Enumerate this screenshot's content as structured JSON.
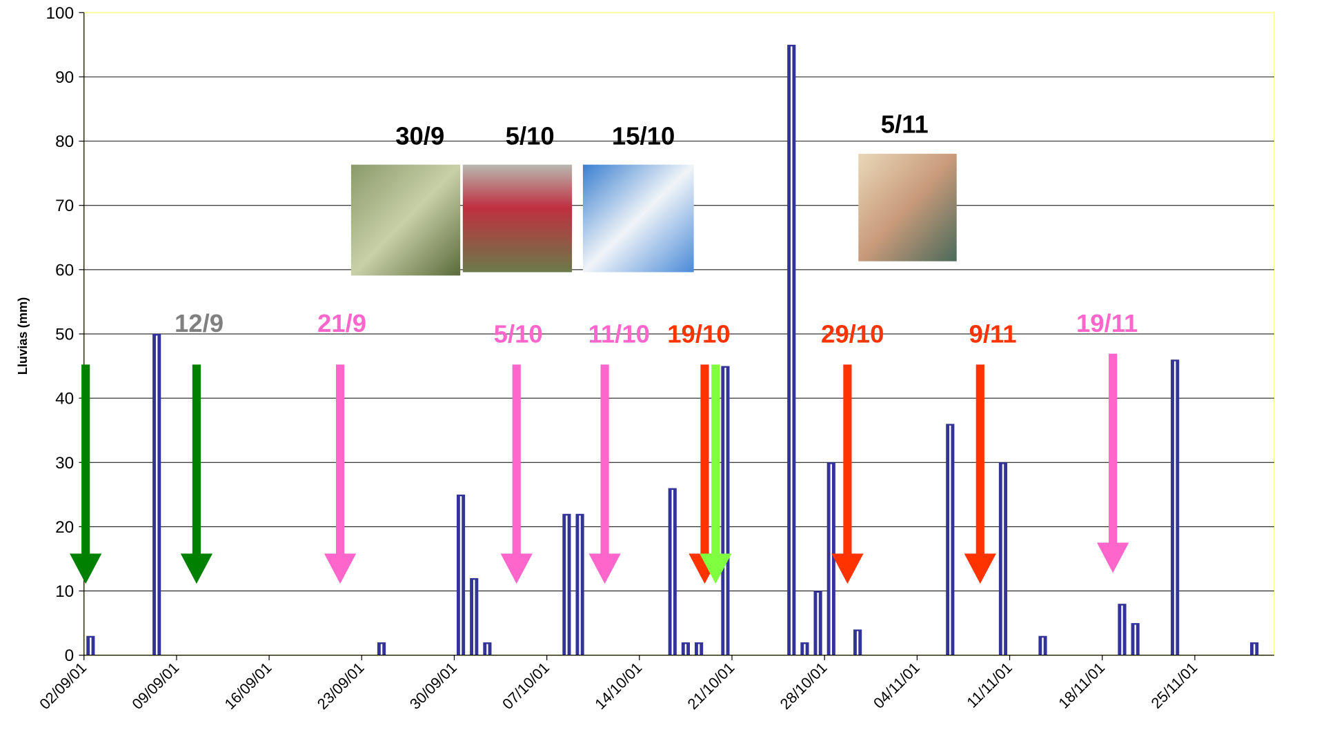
{
  "chart_data": {
    "type": "bar",
    "y_label": "Lluvias (mm)",
    "x": [
      "2001-09-02",
      "2001-09-07",
      "2001-09-24",
      "2001-09-30",
      "2001-10-01",
      "2001-10-02",
      "2001-10-08",
      "2001-10-09",
      "2001-10-16",
      "2001-10-17",
      "2001-10-18",
      "2001-10-20",
      "2001-10-25",
      "2001-10-26",
      "2001-10-27",
      "2001-10-28",
      "2001-10-30",
      "2001-11-06",
      "2001-11-10",
      "2001-11-13",
      "2001-11-19",
      "2001-11-20",
      "2001-11-23",
      "2001-11-29"
    ],
    "values": [
      3,
      50,
      2,
      25,
      12,
      2,
      22,
      22,
      26,
      2,
      2,
      45,
      95,
      2,
      10,
      30,
      4,
      36,
      30,
      3,
      8,
      5,
      46,
      2
    ],
    "color": "#333399",
    "xlim": [
      "2001-09-02",
      "2001-12-01"
    ],
    "xticks": [
      {
        "value": "2001-09-02",
        "label": "02/09/01"
      },
      {
        "value": "2001-09-09",
        "label": "09/09/01"
      },
      {
        "value": "2001-09-16",
        "label": "16/09/01"
      },
      {
        "value": "2001-09-23",
        "label": "23/09/01"
      },
      {
        "value": "2001-09-30",
        "label": "30/09/01"
      },
      {
        "value": "2001-10-07",
        "label": "07/10/01"
      },
      {
        "value": "2001-10-14",
        "label": "14/10/01"
      },
      {
        "value": "2001-10-21",
        "label": "21/10/01"
      },
      {
        "value": "2001-10-28",
        "label": "28/10/01"
      },
      {
        "value": "2001-11-04",
        "label": "04/11/01"
      },
      {
        "value": "2001-11-11",
        "label": "11/11/01"
      },
      {
        "value": "2001-11-18",
        "label": "18/11/01"
      },
      {
        "value": "2001-11-25",
        "label": "25/11/01"
      }
    ],
    "ylim": [
      0,
      100
    ],
    "yticks": [
      0,
      10,
      20,
      30,
      40,
      50,
      60,
      70,
      80,
      90,
      100
    ],
    "grid": true,
    "annotations": [
      {
        "text": "12/9",
        "color": "#808080"
      },
      {
        "text": "21/9",
        "color": "#ff66cc"
      },
      {
        "text": "5/10",
        "color": "#ff66cc"
      },
      {
        "text": "11/10",
        "color": "#ff66cc"
      },
      {
        "text": "19/10",
        "color": "#ff3300"
      },
      {
        "text": "29/10",
        "color": "#ff3300"
      },
      {
        "text": "9/11",
        "color": "#ff3300"
      },
      {
        "text": "19/11",
        "color": "#ff66cc"
      },
      {
        "text": "30/9",
        "color": "#000000"
      },
      {
        "text": "5/10",
        "color": "#000000"
      },
      {
        "text": "15/10",
        "color": "#000000"
      },
      {
        "text": "5/11",
        "color": "#000000"
      }
    ]
  }
}
